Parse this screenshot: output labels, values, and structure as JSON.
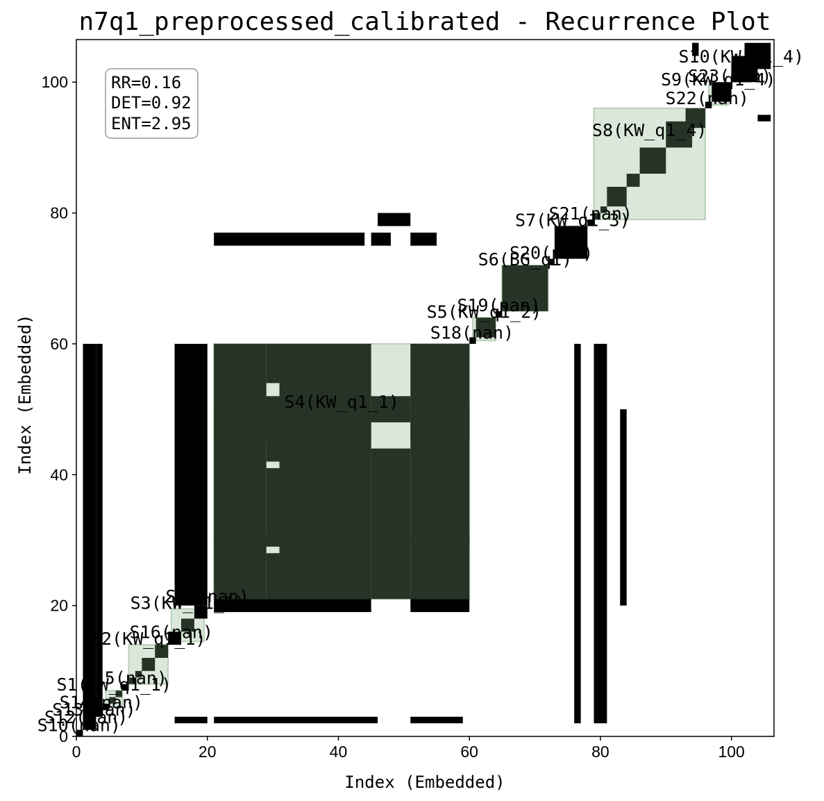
{
  "chart_data": {
    "type": "heatmap",
    "title": "n7q1_preprocessed_calibrated - Recurrence Plot",
    "xlabel": "Index (Embedded)",
    "ylabel": "Index (Embedded)",
    "xlim": [
      0,
      106.5
    ],
    "ylim": [
      0,
      106.5
    ],
    "x_ticks": [
      0,
      20,
      40,
      60,
      80,
      100
    ],
    "y_ticks": [
      0,
      20,
      40,
      60,
      80,
      100
    ],
    "grid": false,
    "stats": [
      "RR=0.16",
      "DET=0.92",
      "ENT=2.95"
    ],
    "colors": {
      "recurrence": "#000000",
      "segment_fill": "#d8e6d8",
      "segment_edge": "#b8d0b8",
      "background": "#ffffff"
    },
    "segments": [
      {
        "label": "S1(KW_q1_1)",
        "range": [
          4.5,
          7
        ]
      },
      {
        "label": "S2(KW_q1_1)",
        "range": [
          8,
          14
        ]
      },
      {
        "label": "S3(KW_q1_1)",
        "range": [
          14.5,
          19.5
        ]
      },
      {
        "label": "S4(KW_q1_1)",
        "range": [
          21,
          60
        ]
      },
      {
        "label": "S5(KW_q1_2)",
        "range": [
          60.5,
          64
        ]
      },
      {
        "label": "S6(BG_q1)",
        "range": [
          65,
          72
        ]
      },
      {
        "label": "S7(KW_q1_3)",
        "range": [
          73.5,
          78
        ]
      },
      {
        "label": "S8(KW_q1_4)",
        "range": [
          79,
          96
        ]
      },
      {
        "label": "S9(KW_q1_4)",
        "range": [
          96.5,
          99.5
        ]
      },
      {
        "label": "S10(KW_q1_4)",
        "range": [
          100,
          103
        ]
      },
      {
        "label": "S10(nan)",
        "range": [
          0,
          0.8
        ]
      },
      {
        "label": "S12(nan)",
        "range": [
          1,
          2
        ]
      },
      {
        "label": "S13(nan)",
        "range": [
          2.2,
          3.2
        ]
      },
      {
        "label": "S14(nan)",
        "range": [
          3.3,
          4.3
        ]
      },
      {
        "label": "S15(nan)",
        "range": [
          7,
          8
        ]
      },
      {
        "label": "S16(nan)",
        "range": [
          14,
          15
        ]
      },
      {
        "label": "S17(nan)",
        "range": [
          19.5,
          20.5
        ]
      },
      {
        "label": "S18(nan)",
        "range": [
          60,
          60.8
        ]
      },
      {
        "label": "S19(nan)",
        "range": [
          64,
          65
        ]
      },
      {
        "label": "S20(nan)",
        "range": [
          72,
          73
        ]
      },
      {
        "label": "S21(nan)",
        "range": [
          78,
          79
        ]
      },
      {
        "label": "S22(nan)",
        "range": [
          96,
          96.6
        ]
      },
      {
        "label": "S23(nan)",
        "range": [
          99.5,
          100
        ]
      }
    ],
    "recurrence_blocks": [
      [
        21,
        29,
        21,
        60
      ],
      [
        31,
        45,
        21,
        60
      ],
      [
        51,
        60,
        21,
        60
      ],
      [
        29,
        31,
        21,
        28
      ],
      [
        29,
        31,
        30,
        41
      ],
      [
        29,
        31,
        42,
        52
      ],
      [
        29,
        31,
        54,
        60
      ],
      [
        45,
        51,
        21,
        44
      ],
      [
        45,
        51,
        48,
        52
      ],
      [
        21,
        45,
        29,
        31
      ],
      [
        21,
        45,
        45,
        51
      ],
      [
        51,
        60,
        29,
        31
      ],
      [
        51,
        60,
        45,
        51
      ],
      [
        21,
        45,
        19,
        21
      ],
      [
        51,
        60,
        19,
        21
      ],
      [
        1,
        3,
        1,
        60
      ],
      [
        3,
        4,
        3,
        60
      ],
      [
        15,
        20,
        20,
        60
      ],
      [
        15,
        20,
        2,
        3
      ],
      [
        21,
        32,
        2,
        3
      ],
      [
        32,
        46,
        2,
        3
      ],
      [
        51,
        59,
        2,
        3
      ],
      [
        21,
        44,
        75,
        77
      ],
      [
        45,
        48,
        75,
        77
      ],
      [
        51,
        55,
        75,
        77
      ],
      [
        46,
        51,
        78,
        80
      ],
      [
        76,
        77,
        2,
        60
      ],
      [
        79,
        81,
        2,
        60
      ],
      [
        83,
        84,
        20,
        50
      ],
      [
        65,
        72,
        65,
        72
      ],
      [
        61,
        64,
        61,
        64
      ],
      [
        73,
        78,
        73,
        78
      ],
      [
        90,
        94,
        90,
        94
      ],
      [
        84,
        86,
        84,
        86
      ],
      [
        86,
        90,
        86,
        90
      ],
      [
        93,
        96,
        93,
        96
      ],
      [
        81,
        84,
        81,
        84
      ],
      [
        97,
        100,
        97,
        100
      ],
      [
        100,
        104,
        100,
        104
      ],
      [
        102,
        106,
        102,
        106
      ],
      [
        94,
        95,
        104,
        106
      ],
      [
        104,
        106,
        94,
        95
      ],
      [
        0,
        1,
        0,
        1
      ],
      [
        1,
        2,
        1,
        2
      ],
      [
        2,
        3,
        2,
        3
      ],
      [
        3,
        4,
        3,
        4
      ],
      [
        4,
        5,
        4,
        5
      ],
      [
        5,
        6,
        5,
        6
      ],
      [
        6,
        7,
        6,
        7
      ],
      [
        7,
        8,
        7,
        8
      ],
      [
        8,
        9,
        8,
        9
      ],
      [
        9,
        10,
        9,
        10
      ],
      [
        10,
        12,
        10,
        12
      ],
      [
        12,
        14,
        12,
        14
      ],
      [
        14,
        16,
        14,
        16
      ],
      [
        16,
        18,
        16,
        18
      ],
      [
        18,
        20,
        18,
        20
      ],
      [
        60,
        61,
        60,
        61
      ],
      [
        64,
        65,
        64,
        65
      ],
      [
        72,
        73,
        72,
        73
      ],
      [
        78,
        79,
        78,
        79
      ],
      [
        79,
        80,
        79,
        80
      ],
      [
        80,
        81,
        80,
        81
      ],
      [
        96,
        97,
        96,
        97
      ]
    ]
  }
}
